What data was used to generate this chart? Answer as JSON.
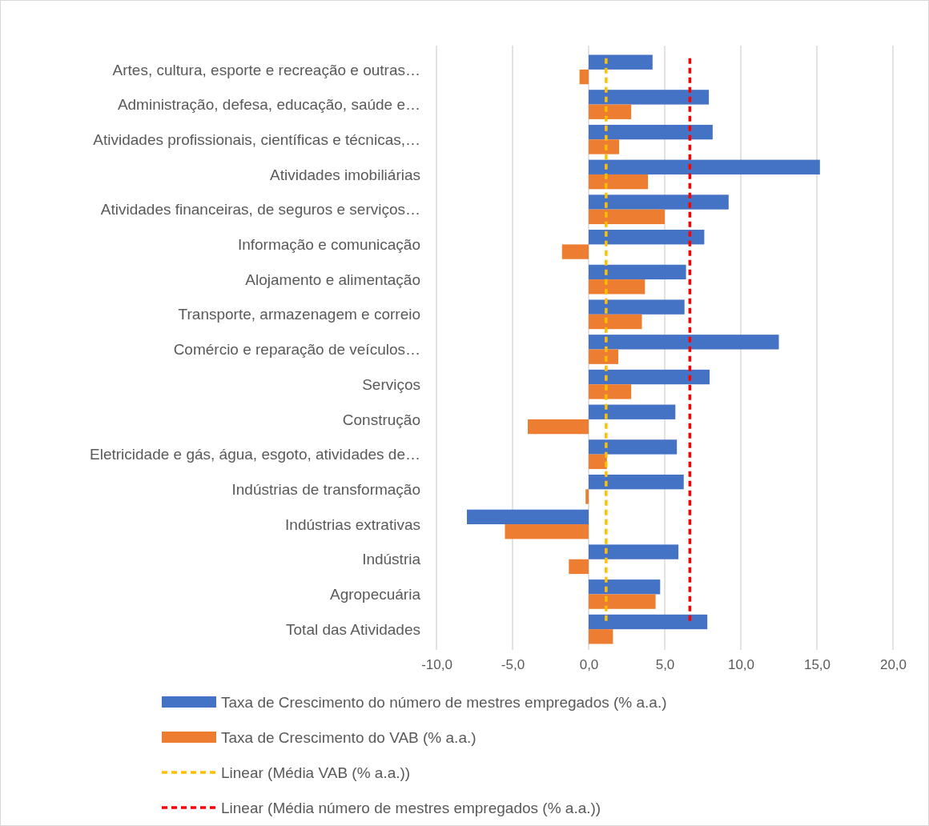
{
  "chart_data": {
    "type": "bar",
    "orientation": "horizontal",
    "categories": [
      "Artes, cultura, esporte e recreação e outras…",
      "Administração, defesa, educação, saúde e…",
      "Atividades profissionais, científicas e técnicas,…",
      "Atividades imobiliárias",
      "Atividades financeiras, de seguros e serviços…",
      "Informação e comunicação",
      "Alojamento e alimentação",
      "Transporte, armazenagem e correio",
      "Comércio e reparação de veículos…",
      "Serviços",
      "Construção",
      "Eletricidade e gás, água, esgoto, atividades de…",
      "Indústrias de transformação",
      "Indústrias extrativas",
      "Indústria",
      "Agropecuária",
      "Total das Atividades"
    ],
    "series": [
      {
        "name": "Taxa de Crescimento do número de mestres empregados (% a.a.)",
        "color": "#4472c4",
        "values": [
          4.2,
          7.9,
          8.15,
          15.2,
          9.2,
          7.6,
          6.4,
          6.3,
          12.5,
          7.95,
          5.7,
          5.8,
          6.25,
          -8.0,
          5.9,
          4.7,
          7.8
        ]
      },
      {
        "name": "Taxa de Crescimento do VAB (% a.a.)",
        "color": "#ed7d31",
        "values": [
          -0.6,
          2.8,
          2.0,
          3.9,
          5.0,
          -1.75,
          3.7,
          3.5,
          1.95,
          2.8,
          -4.0,
          1.2,
          -0.2,
          -5.5,
          -1.3,
          4.4,
          1.6
        ]
      }
    ],
    "ref_lines": [
      {
        "axis": "x",
        "value": 1.15,
        "label": "Linear (Média VAB (% a.a.))",
        "color": "#ffc000",
        "line_style": "dashed"
      },
      {
        "axis": "x",
        "value": 6.65,
        "label": "Linear (Média número de mestres empregados (% a.a.))",
        "color": "#ff0000",
        "line_style": "dashed"
      }
    ],
    "xlim": [
      -10,
      20
    ],
    "xticks": [
      {
        "value": -10,
        "label": "-10,0"
      },
      {
        "value": -5,
        "label": "-5,0"
      },
      {
        "value": 0,
        "label": "0,0"
      },
      {
        "value": 5,
        "label": "5,0"
      },
      {
        "value": 10,
        "label": "10,0"
      },
      {
        "value": 15,
        "label": "15,0"
      },
      {
        "value": 20,
        "label": "20,0"
      }
    ],
    "grid": "x",
    "legend": "bottom"
  }
}
